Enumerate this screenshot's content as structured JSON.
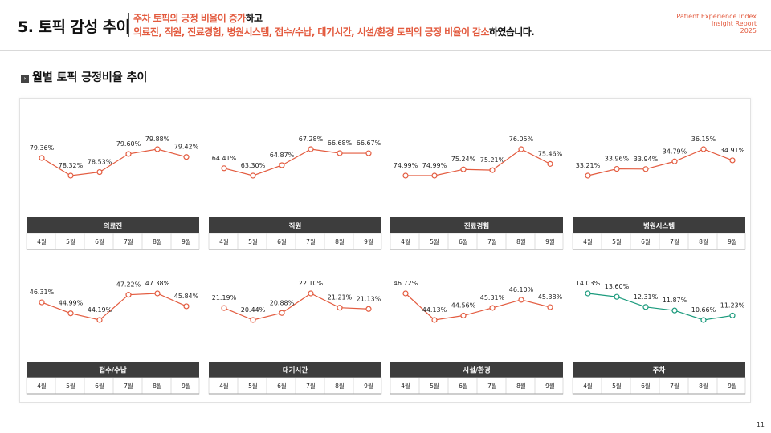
{
  "header": {
    "title": "5. 토픽 감성 추이",
    "subtitle_line1_hl": "주차 토픽의 긍정 비율이 증가",
    "subtitle_line1_rest": "하고",
    "subtitle_line2_hl": "의료진, 직원, 진료경험, 병원시스템, 접수/수납, 대기시간, 시설/환경 토픽의 긍정 비율이 감소",
    "subtitle_line2_rest": "하였습니다.",
    "brand_line1": "Patient Experience Index",
    "brand_line2": "Insight Report",
    "brand_line3": "2025"
  },
  "section": {
    "icon": "arrow-box-icon",
    "icon_glyph": "›",
    "title": "월별 토픽 긍정비율 추이"
  },
  "colors": {
    "increase": "#e35b3f",
    "decrease_marker": "#1a9a7c",
    "header_bar": "#3d3d3d"
  },
  "chart_data": [
    {
      "type": "line",
      "title": "의료진",
      "categories": [
        "4월",
        "5월",
        "6월",
        "7월",
        "8월",
        "9월"
      ],
      "values": [
        79.36,
        78.32,
        78.53,
        79.6,
        79.88,
        79.42
      ],
      "labels": [
        "79.36%",
        "78.32%",
        "78.53%",
        "79.60%",
        "79.88%",
        "79.42%"
      ],
      "color": "#e35b3f"
    },
    {
      "type": "line",
      "title": "직원",
      "categories": [
        "4월",
        "5월",
        "6월",
        "7월",
        "8월",
        "9월"
      ],
      "values": [
        64.41,
        63.3,
        64.87,
        67.28,
        66.68,
        66.67
      ],
      "labels": [
        "64.41%",
        "63.30%",
        "64.87%",
        "67.28%",
        "66.68%",
        "66.67%"
      ],
      "color": "#e35b3f"
    },
    {
      "type": "line",
      "title": "진료경험",
      "categories": [
        "4월",
        "5월",
        "6월",
        "7월",
        "8월",
        "9월"
      ],
      "values": [
        74.99,
        74.99,
        75.24,
        75.21,
        76.05,
        75.46
      ],
      "labels": [
        "74.99%",
        "74.99%",
        "75.24%",
        "75.21%",
        "76.05%",
        "75.46%"
      ],
      "color": "#e35b3f"
    },
    {
      "type": "line",
      "title": "병원시스템",
      "categories": [
        "4월",
        "5월",
        "6월",
        "7월",
        "8월",
        "9월"
      ],
      "values": [
        33.21,
        33.96,
        33.94,
        34.79,
        36.15,
        34.91
      ],
      "labels": [
        "33.21%",
        "33.96%",
        "33.94%",
        "34.79%",
        "36.15%",
        "34.91%"
      ],
      "color": "#e35b3f"
    },
    {
      "type": "line",
      "title": "접수/수납",
      "categories": [
        "4월",
        "5월",
        "6월",
        "7월",
        "8월",
        "9월"
      ],
      "values": [
        46.31,
        44.99,
        44.19,
        47.22,
        47.38,
        45.84
      ],
      "labels": [
        "46.31%",
        "44.99%",
        "44.19%",
        "47.22%",
        "47.38%",
        "45.84%"
      ],
      "color": "#e35b3f"
    },
    {
      "type": "line",
      "title": "대기시간",
      "categories": [
        "4월",
        "5월",
        "6월",
        "7월",
        "8월",
        "9월"
      ],
      "values": [
        21.19,
        20.44,
        20.88,
        22.1,
        21.21,
        21.13
      ],
      "labels": [
        "21.19%",
        "20.44%",
        "20.88%",
        "22.10%",
        "21.21%",
        "21.13%"
      ],
      "color": "#e35b3f"
    },
    {
      "type": "line",
      "title": "시설/환경",
      "categories": [
        "4월",
        "5월",
        "6월",
        "7월",
        "8월",
        "9월"
      ],
      "values": [
        46.72,
        44.13,
        44.56,
        45.31,
        46.1,
        45.38
      ],
      "labels": [
        "46.72%",
        "44.13%",
        "44.56%",
        "45.31%",
        "46.10%",
        "45.38%"
      ],
      "color": "#e35b3f"
    },
    {
      "type": "line",
      "title": "주차",
      "categories": [
        "4월",
        "5월",
        "6월",
        "7월",
        "8월",
        "9월"
      ],
      "values": [
        14.03,
        13.6,
        12.31,
        11.87,
        10.66,
        11.23
      ],
      "labels": [
        "14.03%",
        "13.60%",
        "12.31%",
        "11.87%",
        "10.66%",
        "11.23%"
      ],
      "color": "#1a9a7c"
    }
  ],
  "page_number": "11"
}
